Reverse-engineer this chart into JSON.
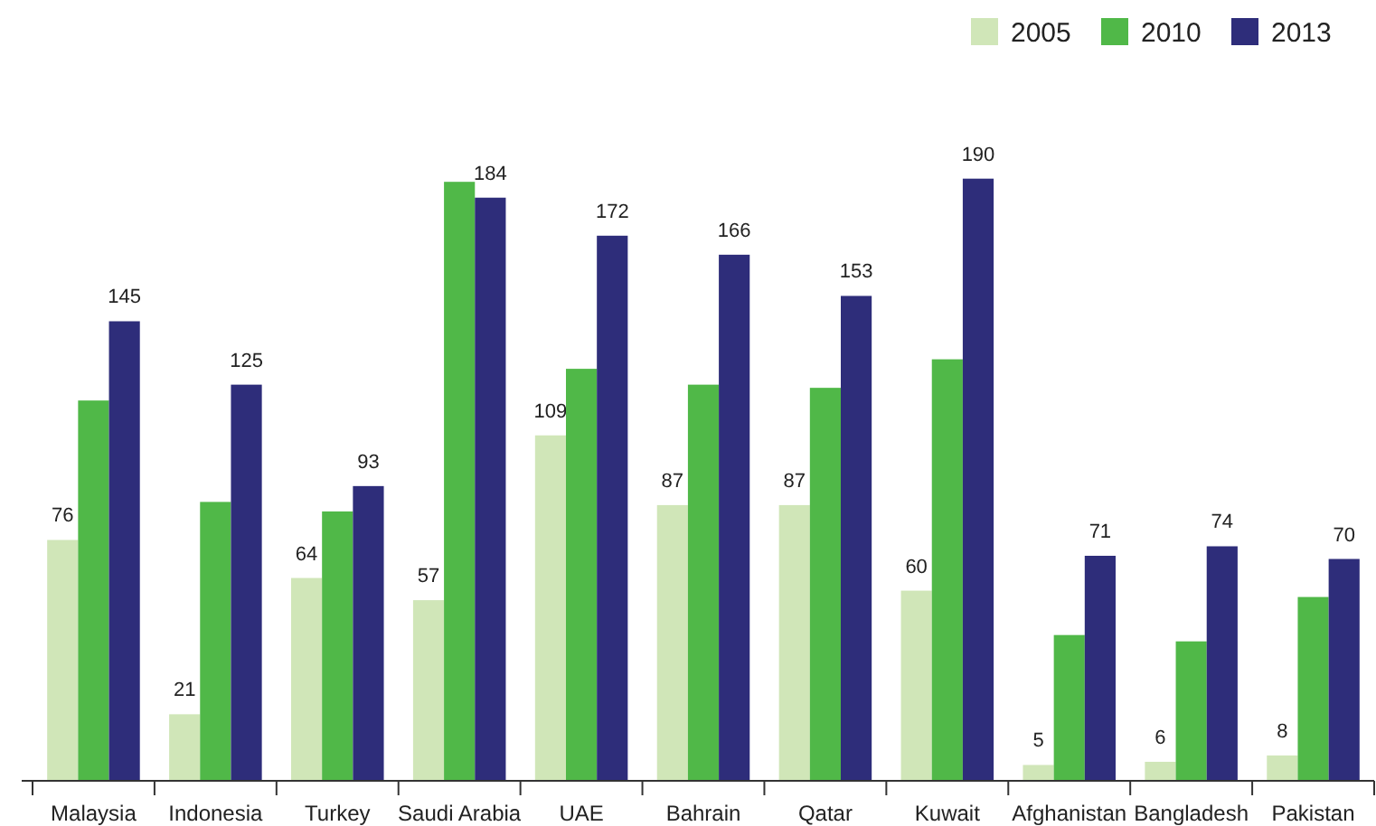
{
  "chart_data": {
    "type": "bar",
    "categories": [
      "Malaysia",
      "Indonesia",
      "Turkey",
      "Saudi Arabia",
      "UAE",
      "Bahrain",
      "Qatar",
      "Kuwait",
      "Afghanistan",
      "Bangladesh",
      "Pakistan"
    ],
    "series": [
      {
        "name": "2005",
        "color": "#d0e6b8",
        "values": [
          76,
          21,
          64,
          57,
          109,
          87,
          87,
          60,
          5,
          6,
          8
        ],
        "value_labels": [
          "76",
          "21",
          "64",
          "57",
          "109",
          "87",
          "87",
          "60",
          "5",
          "6",
          "8"
        ]
      },
      {
        "name": "2010",
        "color": "#50b848",
        "values": [
          120,
          88,
          85,
          189,
          130,
          125,
          124,
          133,
          46,
          44,
          58
        ],
        "value_labels": [
          null,
          null,
          null,
          null,
          null,
          null,
          null,
          null,
          null,
          null,
          null
        ]
      },
      {
        "name": "2013",
        "color": "#2e2d7a",
        "values": [
          145,
          125,
          93,
          184,
          172,
          166,
          153,
          190,
          71,
          74,
          70
        ],
        "value_labels": [
          "145",
          "125",
          "93",
          "184",
          "172",
          "166",
          "153",
          "190",
          "71",
          "74",
          "70"
        ]
      }
    ],
    "legend": "top right",
    "grid": false
  }
}
